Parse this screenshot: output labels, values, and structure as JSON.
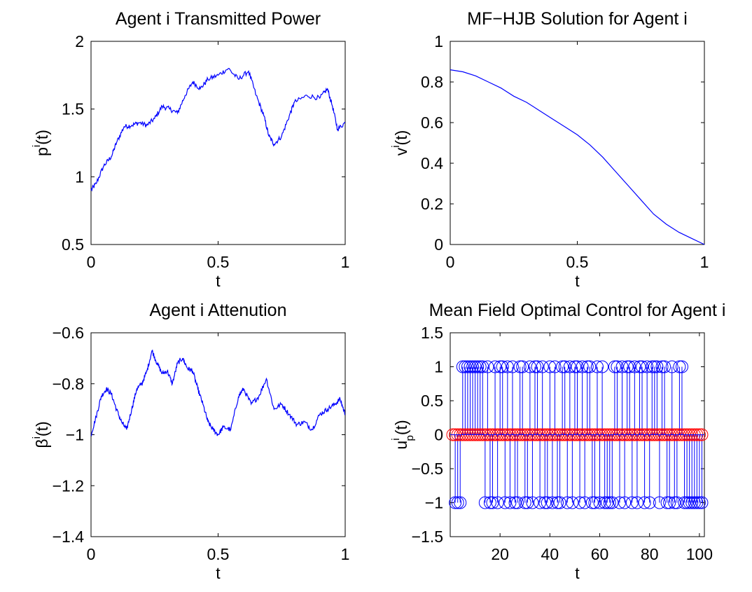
{
  "chart_data": [
    {
      "type": "line",
      "title": "Agent i Transmitted Power",
      "xlabel": "t",
      "ylabel": {
        "base": "p",
        "sup": "i",
        "sub": "",
        "arg": "(t)"
      },
      "xlim": [
        0,
        1
      ],
      "ylim": [
        0.5,
        2
      ],
      "xticks": [
        "0",
        "0.5",
        "1"
      ],
      "yticks": [
        "0.5",
        "1",
        "1.5",
        "2"
      ],
      "grid": false,
      "noisy": true,
      "series": [
        {
          "color": "#0000ff",
          "x": [
            0,
            0.02,
            0.05,
            0.08,
            0.1,
            0.13,
            0.16,
            0.19,
            0.22,
            0.25,
            0.28,
            0.31,
            0.34,
            0.37,
            0.4,
            0.43,
            0.46,
            0.5,
            0.54,
            0.58,
            0.62,
            0.65,
            0.68,
            0.7,
            0.72,
            0.75,
            0.78,
            0.8,
            0.85,
            0.9,
            0.93,
            0.95,
            0.97,
            1.0
          ],
          "y": [
            0.9,
            0.95,
            1.08,
            1.15,
            1.25,
            1.37,
            1.38,
            1.4,
            1.38,
            1.43,
            1.52,
            1.5,
            1.47,
            1.6,
            1.7,
            1.65,
            1.72,
            1.75,
            1.8,
            1.72,
            1.78,
            1.6,
            1.45,
            1.3,
            1.24,
            1.3,
            1.45,
            1.55,
            1.6,
            1.58,
            1.65,
            1.52,
            1.35,
            1.4
          ]
        }
      ]
    },
    {
      "type": "line",
      "title": "MF−HJB Solution for Agent i",
      "xlabel": "t",
      "ylabel": {
        "base": "v",
        "sup": "i",
        "sub": "",
        "arg": "(t)"
      },
      "xlim": [
        0,
        1
      ],
      "ylim": [
        0,
        1
      ],
      "xticks": [
        "0",
        "0.5",
        "1"
      ],
      "yticks": [
        "0",
        "0.2",
        "0.4",
        "0.6",
        "0.8",
        "1"
      ],
      "grid": false,
      "noisy": false,
      "series": [
        {
          "color": "#0000ff",
          "x": [
            0,
            0.05,
            0.1,
            0.15,
            0.2,
            0.25,
            0.3,
            0.35,
            0.4,
            0.45,
            0.5,
            0.55,
            0.6,
            0.65,
            0.7,
            0.75,
            0.8,
            0.85,
            0.9,
            0.95,
            1.0
          ],
          "y": [
            0.86,
            0.85,
            0.83,
            0.8,
            0.77,
            0.73,
            0.7,
            0.66,
            0.62,
            0.58,
            0.54,
            0.49,
            0.43,
            0.36,
            0.29,
            0.22,
            0.15,
            0.1,
            0.06,
            0.03,
            0.0
          ]
        }
      ]
    },
    {
      "type": "line",
      "title": "Agent i Attenution",
      "xlabel": "t",
      "ylabel": {
        "base": "β",
        "sup": "i",
        "sub": "",
        "arg": "(t)"
      },
      "xlim": [
        0,
        1
      ],
      "ylim": [
        -1.4,
        -0.6
      ],
      "xticks": [
        "0",
        "0.5",
        "1"
      ],
      "yticks": [
        "−1.4",
        "−1.2",
        "−1",
        "−0.8",
        "−0.6"
      ],
      "grid": false,
      "noisy": true,
      "series": [
        {
          "color": "#0000ff",
          "x": [
            0,
            0.02,
            0.04,
            0.06,
            0.08,
            0.1,
            0.12,
            0.14,
            0.16,
            0.18,
            0.2,
            0.22,
            0.24,
            0.26,
            0.28,
            0.3,
            0.32,
            0.34,
            0.36,
            0.38,
            0.4,
            0.42,
            0.44,
            0.46,
            0.48,
            0.5,
            0.52,
            0.55,
            0.58,
            0.6,
            0.63,
            0.66,
            0.69,
            0.72,
            0.75,
            0.78,
            0.81,
            0.84,
            0.87,
            0.9,
            0.93,
            0.96,
            0.98,
            1.0
          ],
          "y": [
            -1.0,
            -0.93,
            -0.85,
            -0.82,
            -0.84,
            -0.9,
            -0.95,
            -0.98,
            -0.9,
            -0.82,
            -0.8,
            -0.75,
            -0.67,
            -0.72,
            -0.76,
            -0.75,
            -0.8,
            -0.72,
            -0.7,
            -0.74,
            -0.75,
            -0.82,
            -0.88,
            -0.95,
            -0.98,
            -1.0,
            -0.97,
            -0.98,
            -0.85,
            -0.82,
            -0.88,
            -0.85,
            -0.78,
            -0.9,
            -0.88,
            -0.92,
            -0.96,
            -0.95,
            -0.98,
            -0.92,
            -0.9,
            -0.88,
            -0.86,
            -0.92
          ]
        }
      ]
    },
    {
      "type": "stem",
      "title": "Mean Field Optimal Control for Agent i",
      "xlabel": "t",
      "ylabel": {
        "base": "u",
        "sup": "i",
        "sub": "p",
        "arg": "(t)"
      },
      "xlim": [
        0,
        102
      ],
      "ylim": [
        -1.5,
        1.5
      ],
      "xticks": [
        "20",
        "40",
        "60",
        "80",
        "100"
      ],
      "yticks": [
        "−1.5",
        "−1",
        "−0.5",
        "0",
        "0.5",
        "1",
        "1.5"
      ],
      "grid": false,
      "series": [
        {
          "color": "#0000ff",
          "x": [
            2,
            3,
            4,
            5,
            6,
            7,
            8,
            9,
            10,
            11,
            12,
            13,
            14,
            15,
            16,
            17,
            18,
            19,
            20,
            21,
            22,
            23,
            24,
            25,
            26,
            27,
            28,
            29,
            30,
            31,
            32,
            33,
            34,
            35,
            36,
            37,
            38,
            39,
            40,
            41,
            42,
            43,
            44,
            45,
            46,
            47,
            48,
            49,
            50,
            51,
            52,
            53,
            54,
            55,
            56,
            57,
            58,
            59,
            60,
            61,
            62,
            63,
            64,
            65,
            66,
            67,
            68,
            69,
            70,
            71,
            72,
            73,
            74,
            75,
            76,
            77,
            78,
            79,
            80,
            81,
            82,
            83,
            84,
            85,
            86,
            87,
            88,
            89,
            90,
            91,
            92,
            93,
            94,
            95,
            96,
            97,
            98,
            99,
            100,
            101
          ],
          "y": [
            -1,
            -1,
            -1,
            1,
            1,
            1,
            1,
            1,
            1,
            1,
            1,
            1,
            -1,
            1,
            -1,
            -1,
            1,
            -1,
            1,
            1,
            -1,
            1,
            -1,
            1,
            -1,
            -1,
            1,
            1,
            -1,
            -1,
            1,
            -1,
            1,
            1,
            -1,
            1,
            -1,
            -1,
            1,
            -1,
            1,
            -1,
            -1,
            1,
            1,
            -1,
            1,
            -1,
            1,
            1,
            -1,
            1,
            -1,
            1,
            1,
            -1,
            -1,
            1,
            -1,
            1,
            -1,
            -1,
            -1,
            -1,
            1,
            1,
            -1,
            1,
            -1,
            1,
            1,
            -1,
            1,
            -1,
            1,
            1,
            -1,
            1,
            -1,
            1,
            1,
            1,
            -1,
            1,
            1,
            -1,
            -1,
            1,
            -1,
            -1,
            1,
            1,
            -1,
            -1,
            -1,
            -1,
            -1,
            -1,
            -1,
            -1
          ]
        },
        {
          "color": "#ff0000",
          "x": [
            1,
            2,
            3,
            4,
            5,
            6,
            7,
            8,
            9,
            10,
            11,
            12,
            13,
            14,
            15,
            16,
            17,
            18,
            19,
            20,
            21,
            22,
            23,
            24,
            25,
            26,
            27,
            28,
            29,
            30,
            31,
            32,
            33,
            34,
            35,
            36,
            37,
            38,
            39,
            40,
            41,
            42,
            43,
            44,
            45,
            46,
            47,
            48,
            49,
            50,
            51,
            52,
            53,
            54,
            55,
            56,
            57,
            58,
            59,
            60,
            61,
            62,
            63,
            64,
            65,
            66,
            67,
            68,
            69,
            70,
            71,
            72,
            73,
            74,
            75,
            76,
            77,
            78,
            79,
            80,
            81,
            82,
            83,
            84,
            85,
            86,
            87,
            88,
            89,
            90,
            91,
            92,
            93,
            94,
            95,
            96,
            97,
            98,
            99,
            100,
            101
          ],
          "y": [
            0,
            0,
            0,
            0,
            0,
            0,
            0,
            0,
            0,
            0,
            0,
            0,
            0,
            0,
            0,
            0,
            0,
            0,
            0,
            0,
            0,
            0,
            0,
            0,
            0,
            0,
            0,
            0,
            0,
            0,
            0,
            0,
            0,
            0,
            0,
            0,
            0,
            0,
            0,
            0,
            0,
            0,
            0,
            0,
            0,
            0,
            0,
            0,
            0,
            0,
            0,
            0,
            0,
            0,
            0,
            0,
            0,
            0,
            0,
            0,
            0,
            0,
            0,
            0,
            0,
            0,
            0,
            0,
            0,
            0,
            0,
            0,
            0,
            0,
            0,
            0,
            0,
            0,
            0,
            0,
            0,
            0,
            0,
            0,
            0,
            0,
            0,
            0,
            0,
            0,
            0,
            0,
            0,
            0,
            0,
            0,
            0,
            0,
            0,
            0,
            0
          ]
        }
      ]
    }
  ]
}
